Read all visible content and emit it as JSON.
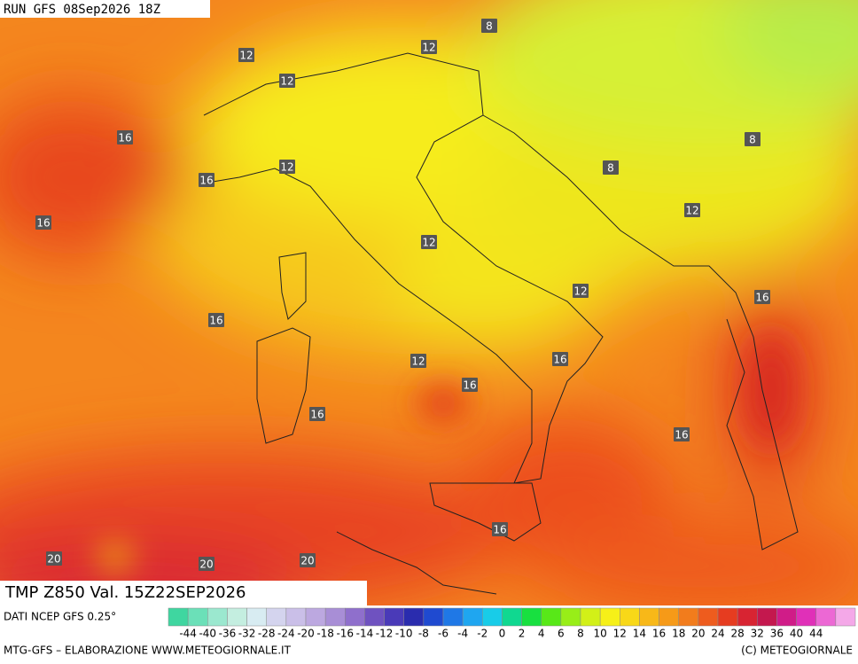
{
  "header": {
    "run": "RUN GFS 08Sep2026 18Z"
  },
  "map": {
    "title": "TMP  Z850  Val. 15Z22SEP2026",
    "contour_labels": [
      8,
      12,
      12,
      12,
      16,
      8,
      8,
      12,
      16,
      12,
      16,
      12,
      12,
      16,
      16,
      12,
      16,
      16,
      16,
      16,
      16,
      20,
      20,
      20
    ]
  },
  "legend": {
    "source": "DATI NCEP GFS 0.25°",
    "ticks": [
      -44,
      -40,
      -36,
      -32,
      -28,
      -24,
      -20,
      -18,
      -16,
      -14,
      -12,
      -10,
      -8,
      -6,
      -4,
      -2,
      0,
      2,
      4,
      6,
      8,
      10,
      12,
      14,
      16,
      18,
      20,
      24,
      28,
      32,
      36,
      40,
      44
    ],
    "colors": [
      "#3fd6a0",
      "#6be0b8",
      "#9be8cf",
      "#c4eee0",
      "#d8ecf2",
      "#d4d4ee",
      "#cabfe8",
      "#bca8e0",
      "#a88ed6",
      "#8f6fcc",
      "#6f52c0",
      "#4a3ab8",
      "#2a2cae",
      "#1f4ad0",
      "#1f78e6",
      "#1fa6f0",
      "#18cce8",
      "#10d890",
      "#18e040",
      "#58e818",
      "#98ee18",
      "#d2f018",
      "#f6f018",
      "#f8d818",
      "#f8b818",
      "#f69a18",
      "#f27c1c",
      "#ee5c1e",
      "#e63c20",
      "#d82432",
      "#c4184e",
      "#d01c88",
      "#e030b8",
      "#ec68d4",
      "#f4a8e8"
    ]
  },
  "footer": {
    "left": "MTG-GFS – ELABORAZIONE WWW.METEOGIORNALE.IT",
    "right": "(C) METEOGIORNALE"
  }
}
